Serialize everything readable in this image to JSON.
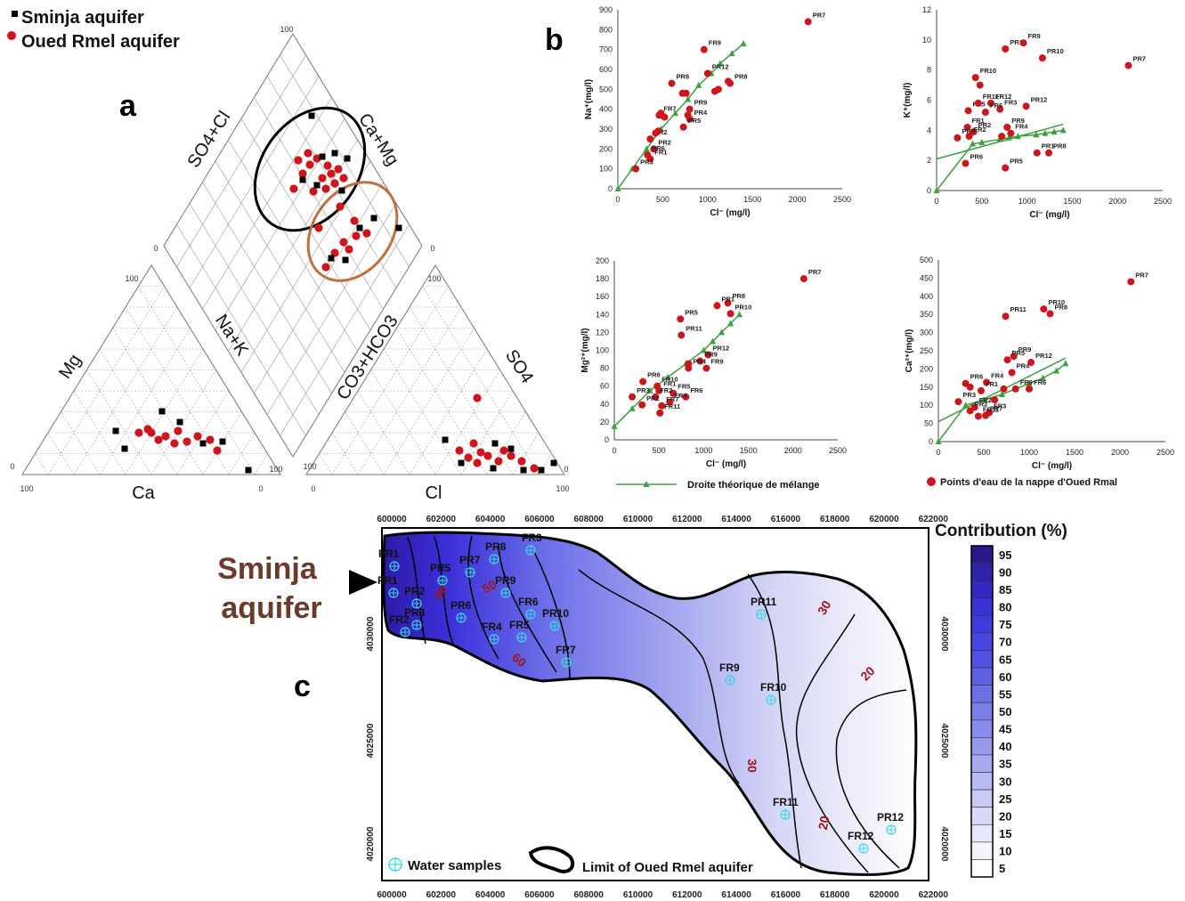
{
  "panel_labels": {
    "a": "a",
    "b": "b",
    "c": "c"
  },
  "colors": {
    "sminja": "#000000",
    "oued": "#d0141c",
    "mixline": "#3aa040",
    "curve_black": "#000000",
    "curve_brown": "#c0703e",
    "contour": "#000000",
    "contour_label": "#a0141c",
    "sample_marker": "#38d8e8"
  },
  "legend_a": {
    "sminja": "Sminja aquifer",
    "oued": "Oued Rmel aquifer"
  },
  "piper": {
    "diamond_top": "SO4+Cl",
    "diamond_right": "Ca+Mg",
    "left_tri_left": "Mg",
    "left_tri_right": "Na+K",
    "left_tri_bottom": "Ca",
    "right_tri_left": "CO3+HCO3",
    "right_tri_right": "SO4",
    "right_tri_bottom": "Cl",
    "ticks": {
      "t100": "100",
      "t0": "0"
    }
  },
  "legend_b": {
    "mixline": "Droite théorique de mélange",
    "points": "Points d'eau de la nappe d'Oued Rmal"
  },
  "chart_data": [
    {
      "type": "scatter",
      "title": "",
      "xlabel": "Cl⁻ (mg/l)",
      "ylabel": "Na⁺(mg/l)",
      "xlim": [
        0,
        2500
      ],
      "ylim": [
        0,
        900
      ],
      "xticks": [
        0,
        500,
        1000,
        1500,
        2000,
        2500
      ],
      "yticks": [
        0,
        100,
        200,
        300,
        400,
        500,
        600,
        700,
        800,
        900
      ],
      "series": [
        {
          "points": [
            {
              "label": "PR7",
              "x": 2120,
              "y": 840
            },
            {
              "label": "FR9",
              "x": 960,
              "y": 700
            },
            {
              "label": "PR12",
              "x": 1000,
              "y": 580
            },
            {
              "label": "PR8",
              "x": 1250,
              "y": 530
            },
            {
              "label": "PR8",
              "x": 600,
              "y": 530
            },
            {
              "label": "PR9",
              "x": 800,
              "y": 400
            },
            {
              "label": "PR4",
              "x": 800,
              "y": 350
            },
            {
              "label": "PR5",
              "x": 730,
              "y": 310
            },
            {
              "label": "FR7",
              "x": 460,
              "y": 370
            },
            {
              "label": "FR2",
              "x": 360,
              "y": 250
            },
            {
              "label": "PR2",
              "x": 400,
              "y": 200
            },
            {
              "label": "PR6",
              "x": 330,
              "y": 170
            },
            {
              "label": "FR1",
              "x": 360,
              "y": 150
            },
            {
              "label": "PR3",
              "x": 200,
              "y": 100
            },
            {
              "label": "",
              "x": 720,
              "y": 480
            },
            {
              "label": "",
              "x": 760,
              "y": 480
            },
            {
              "label": "",
              "x": 1080,
              "y": 490
            },
            {
              "label": "",
              "x": 1120,
              "y": 500
            },
            {
              "label": "",
              "x": 1230,
              "y": 540
            },
            {
              "label": "",
              "x": 480,
              "y": 380
            },
            {
              "label": "",
              "x": 520,
              "y": 360
            },
            {
              "label": "",
              "x": 420,
              "y": 280
            },
            {
              "label": "",
              "x": 450,
              "y": 290
            },
            {
              "label": "",
              "x": 780,
              "y": 370
            }
          ]
        }
      ],
      "mixing_line": [
        [
          0,
          0
        ],
        [
          160,
          100
        ],
        [
          320,
          200
        ],
        [
          480,
          300
        ],
        [
          640,
          380
        ],
        [
          780,
          450
        ],
        [
          900,
          520
        ],
        [
          1040,
          580
        ],
        [
          1140,
          630
        ],
        [
          1270,
          680
        ],
        [
          1400,
          730
        ]
      ]
    },
    {
      "type": "scatter",
      "title": "",
      "xlabel": "Cl⁻ (mg/l)",
      "ylabel": "K⁺(mg/l)",
      "xlim": [
        0,
        2500
      ],
      "ylim": [
        0,
        12
      ],
      "xticks": [
        0,
        500,
        1000,
        1500,
        2000,
        2500
      ],
      "yticks": [
        0,
        2,
        4,
        6,
        8,
        10,
        12
      ],
      "series": [
        {
          "points": [
            {
              "label": "PR11",
              "x": 760,
              "y": 9.4
            },
            {
              "label": "FR9",
              "x": 960,
              "y": 9.8
            },
            {
              "label": "PR10",
              "x": 1170,
              "y": 8.8
            },
            {
              "label": "PR7",
              "x": 2120,
              "y": 8.3
            },
            {
              "label": "FR10",
              "x": 430,
              "y": 7.5
            },
            {
              "label": "FR12",
              "x": 600,
              "y": 5.8
            },
            {
              "label": "PR12",
              "x": 990,
              "y": 5.6
            },
            {
              "label": "FR5",
              "x": 350,
              "y": 5.3
            },
            {
              "label": "FR11",
              "x": 460,
              "y": 5.8
            },
            {
              "label": "FR3",
              "x": 700,
              "y": 5.4
            },
            {
              "label": "FR6",
              "x": 540,
              "y": 5.2
            },
            {
              "label": "FR1",
              "x": 340,
              "y": 4.2
            },
            {
              "label": "PR2",
              "x": 410,
              "y": 3.9
            },
            {
              "label": "PR9",
              "x": 780,
              "y": 4.2
            },
            {
              "label": "FR4",
              "x": 820,
              "y": 3.8
            },
            {
              "label": "PR3",
              "x": 230,
              "y": 3.5
            },
            {
              "label": "FR2",
              "x": 360,
              "y": 3.6
            },
            {
              "label": "PR1",
              "x": 1110,
              "y": 2.5
            },
            {
              "label": "PR8",
              "x": 1240,
              "y": 2.5
            },
            {
              "label": "PR6",
              "x": 320,
              "y": 1.8
            },
            {
              "label": "PR5",
              "x": 760,
              "y": 1.5
            },
            {
              "label": "",
              "x": 480,
              "y": 7.0
            },
            {
              "label": "",
              "x": 720,
              "y": 3.6
            }
          ]
        }
      ],
      "mixing_line": [
        [
          0,
          0
        ],
        [
          400,
          3.1
        ],
        [
          500,
          3.2
        ],
        [
          700,
          3.4
        ],
        [
          800,
          3.5
        ],
        [
          900,
          3.6
        ],
        [
          1100,
          3.7
        ],
        [
          1200,
          3.8
        ],
        [
          1300,
          3.9
        ],
        [
          1400,
          4.0
        ]
      ],
      "trend_line": [
        [
          0,
          2.1
        ],
        [
          1400,
          4.4
        ]
      ]
    },
    {
      "type": "scatter",
      "title": "",
      "xlabel": "Cl⁻ (mg/l)",
      "ylabel": "Mg²⁺(mg/l)",
      "xlim": [
        0,
        2500
      ],
      "ylim": [
        0,
        200
      ],
      "xticks": [
        0,
        500,
        1000,
        1500,
        2000,
        2500
      ],
      "yticks": [
        0,
        20,
        40,
        60,
        80,
        100,
        120,
        140,
        160,
        180,
        200
      ],
      "series": [
        {
          "points": [
            {
              "label": "PR7",
              "x": 2120,
              "y": 180
            },
            {
              "label": "PR8",
              "x": 1270,
              "y": 153
            },
            {
              "label": "PR1",
              "x": 1150,
              "y": 150
            },
            {
              "label": "PR10",
              "x": 1300,
              "y": 141
            },
            {
              "label": "PR5",
              "x": 740,
              "y": 135
            },
            {
              "label": "PR11",
              "x": 750,
              "y": 117
            },
            {
              "label": "PR12",
              "x": 1050,
              "y": 95
            },
            {
              "label": "PR9",
              "x": 960,
              "y": 88
            },
            {
              "label": "FR9",
              "x": 1030,
              "y": 80
            },
            {
              "label": "PR4",
              "x": 830,
              "y": 80
            },
            {
              "label": "PR6",
              "x": 320,
              "y": 65
            },
            {
              "label": "FR10",
              "x": 480,
              "y": 60
            },
            {
              "label": "FR1",
              "x": 500,
              "y": 55
            },
            {
              "label": "FR5",
              "x": 660,
              "y": 52
            },
            {
              "label": "FR2",
              "x": 460,
              "y": 48
            },
            {
              "label": "PR3",
              "x": 200,
              "y": 48
            },
            {
              "label": "FR6",
              "x": 800,
              "y": 48
            },
            {
              "label": "FR4",
              "x": 620,
              "y": 42
            },
            {
              "label": "FR7",
              "x": 530,
              "y": 38
            },
            {
              "label": "PR2",
              "x": 310,
              "y": 39
            },
            {
              "label": "FR11",
              "x": 510,
              "y": 30
            },
            {
              "label": "",
              "x": 830,
              "y": 85
            }
          ]
        }
      ],
      "mixing_line": [
        [
          0,
          15
        ],
        [
          200,
          35
        ],
        [
          400,
          55
        ],
        [
          600,
          70
        ],
        [
          800,
          85
        ],
        [
          1000,
          100
        ],
        [
          1100,
          110
        ],
        [
          1200,
          120
        ],
        [
          1300,
          130
        ],
        [
          1400,
          140
        ]
      ]
    },
    {
      "type": "scatter",
      "title": "",
      "xlabel": "Cl⁻ (mg/l)",
      "ylabel": "Ca²⁺(mg/l)",
      "xlim": [
        0,
        2500
      ],
      "ylim": [
        0,
        500
      ],
      "xticks": [
        0,
        500,
        1000,
        1500,
        2000,
        2500
      ],
      "yticks": [
        0,
        50,
        100,
        150,
        200,
        250,
        300,
        350,
        400,
        450,
        500
      ],
      "series": [
        {
          "points": [
            {
              "label": "PR7",
              "x": 2120,
              "y": 440
            },
            {
              "label": "PR10",
              "x": 1160,
              "y": 365
            },
            {
              "label": "PR8",
              "x": 1230,
              "y": 352
            },
            {
              "label": "PR11",
              "x": 740,
              "y": 345
            },
            {
              "label": "PR9",
              "x": 830,
              "y": 235
            },
            {
              "label": "PR12",
              "x": 1020,
              "y": 218
            },
            {
              "label": "PR5",
              "x": 760,
              "y": 225
            },
            {
              "label": "PR4",
              "x": 810,
              "y": 190
            },
            {
              "label": "PR6",
              "x": 300,
              "y": 160
            },
            {
              "label": "FR4",
              "x": 530,
              "y": 163
            },
            {
              "label": "FR1",
              "x": 470,
              "y": 140
            },
            {
              "label": "FR9",
              "x": 850,
              "y": 145
            },
            {
              "label": "FR6",
              "x": 1000,
              "y": 145
            },
            {
              "label": "PR3",
              "x": 220,
              "y": 110
            },
            {
              "label": "FR2",
              "x": 400,
              "y": 95
            },
            {
              "label": "PR2",
              "x": 350,
              "y": 85
            },
            {
              "label": "FR3",
              "x": 560,
              "y": 80
            },
            {
              "label": "FR11",
              "x": 440,
              "y": 70
            },
            {
              "label": "FR7",
              "x": 520,
              "y": 72
            },
            {
              "label": "",
              "x": 350,
              "y": 150
            },
            {
              "label": "",
              "x": 620,
              "y": 115
            },
            {
              "label": "",
              "x": 720,
              "y": 145
            }
          ]
        }
      ],
      "mixing_line": [
        [
          0,
          0
        ],
        [
          300,
          100
        ],
        [
          500,
          115
        ],
        [
          700,
          130
        ],
        [
          850,
          145
        ],
        [
          1000,
          160
        ],
        [
          1150,
          175
        ],
        [
          1300,
          195
        ],
        [
          1400,
          215
        ]
      ],
      "trend_line": [
        [
          0,
          55
        ],
        [
          1400,
          230
        ]
      ]
    }
  ],
  "map": {
    "xticks": [
      "600000",
      "602000",
      "604000",
      "606000",
      "608000",
      "610000",
      "612000",
      "614000",
      "616000",
      "618000",
      "620000",
      "622000"
    ],
    "yticks": [
      "4030000",
      "4025000",
      "4020000"
    ],
    "sminja_label_line1": "Sminja",
    "sminja_label_line2": "aquifer",
    "contour_labels": [
      "90",
      "50",
      "60",
      "30",
      "20",
      "30",
      "20"
    ],
    "samples": [
      {
        "label": "PR1"
      },
      {
        "label": "FR1"
      },
      {
        "label": "PR2"
      },
      {
        "label": "PR3"
      },
      {
        "label": "FR2"
      },
      {
        "label": "PR5"
      },
      {
        "label": "PR7"
      },
      {
        "label": "PR8"
      },
      {
        "label": "FR3"
      },
      {
        "label": "PR9"
      },
      {
        "label": "PR6"
      },
      {
        "label": "FR6"
      },
      {
        "label": "PR10"
      },
      {
        "label": "FR4"
      },
      {
        "label": "FR5"
      },
      {
        "label": "FR7"
      },
      {
        "label": "PR11"
      },
      {
        "label": "FR9"
      },
      {
        "label": "FR10"
      },
      {
        "label": "FR11"
      },
      {
        "label": "PR12"
      },
      {
        "label": "FR12"
      }
    ],
    "legend_samples": "Water samples",
    "legend_limit": "Limit of Oued Rmel aquifer",
    "colorbar_title": "Contribution (%)",
    "colorbar_ticks": [
      "95",
      "90",
      "85",
      "80",
      "75",
      "70",
      "65",
      "60",
      "55",
      "50",
      "45",
      "40",
      "35",
      "30",
      "25",
      "20",
      "15",
      "10",
      "5"
    ]
  }
}
